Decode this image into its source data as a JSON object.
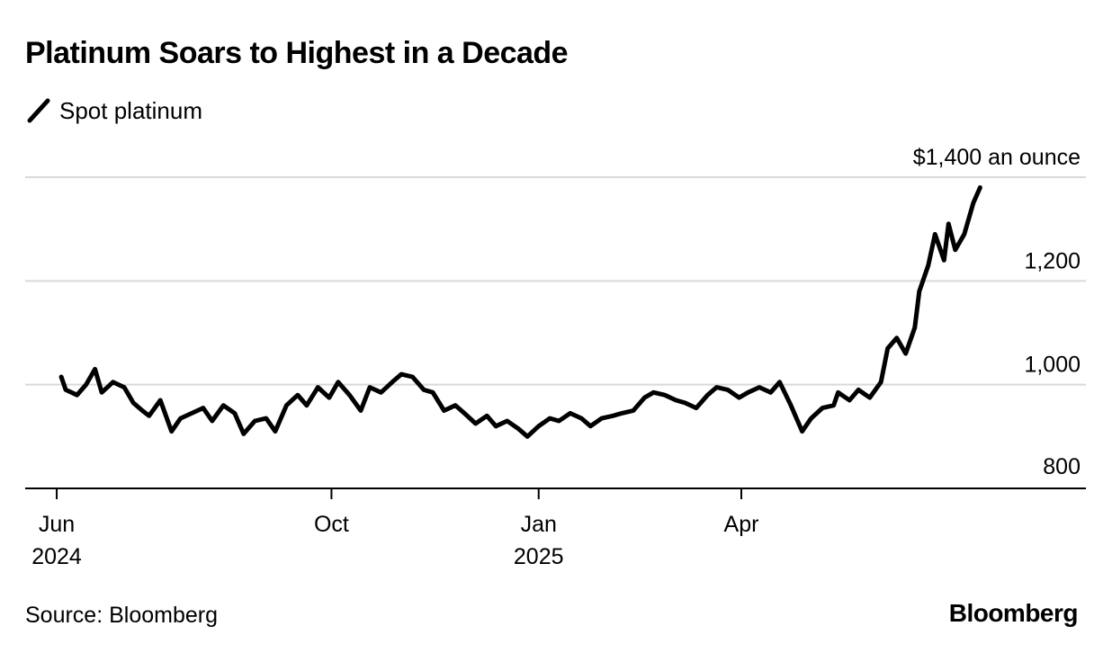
{
  "header": {
    "title": "Platinum Soars to Highest in a Decade",
    "legend_label": "Spot platinum"
  },
  "footer": {
    "source": "Source: Bloomberg",
    "brand": "Bloomberg"
  },
  "colors": {
    "line": "#000000",
    "grid": "#d9d9d9",
    "axis": "#000000"
  },
  "chart_data": {
    "type": "line",
    "title": "Platinum Soars to Highest in a Decade",
    "series": [
      {
        "name": "Spot platinum",
        "unit": "$ an ounce",
        "x": [
          "2024-06-03",
          "2024-06-05",
          "2024-06-10",
          "2024-06-14",
          "2024-06-18",
          "2024-06-21",
          "2024-06-26",
          "2024-07-01",
          "2024-07-05",
          "2024-07-09",
          "2024-07-12",
          "2024-07-17",
          "2024-07-22",
          "2024-07-26",
          "2024-07-31",
          "2024-08-05",
          "2024-08-09",
          "2024-08-14",
          "2024-08-19",
          "2024-08-23",
          "2024-08-28",
          "2024-09-02",
          "2024-09-06",
          "2024-09-11",
          "2024-09-16",
          "2024-09-20",
          "2024-09-25",
          "2024-09-30",
          "2024-10-04",
          "2024-10-09",
          "2024-10-14",
          "2024-10-18",
          "2024-10-23",
          "2024-10-28",
          "2024-11-01",
          "2024-11-06",
          "2024-11-11",
          "2024-11-15",
          "2024-11-20",
          "2024-11-25",
          "2024-11-29",
          "2024-12-04",
          "2024-12-09",
          "2024-12-13",
          "2024-12-18",
          "2024-12-23",
          "2024-12-27",
          "2025-01-01",
          "2025-01-06",
          "2025-01-10",
          "2025-01-15",
          "2025-01-20",
          "2025-01-24",
          "2025-01-29",
          "2025-02-03",
          "2025-02-07",
          "2025-02-12",
          "2025-02-17",
          "2025-02-21",
          "2025-02-26",
          "2025-03-03",
          "2025-03-07",
          "2025-03-12",
          "2025-03-17",
          "2025-03-21",
          "2025-03-26",
          "2025-03-31",
          "2025-04-04",
          "2025-04-09",
          "2025-04-14",
          "2025-04-18",
          "2025-04-23",
          "2025-04-28",
          "2025-05-02",
          "2025-05-07",
          "2025-05-12",
          "2025-05-14",
          "2025-05-19",
          "2025-05-23",
          "2025-05-28",
          "2025-06-02",
          "2025-06-05",
          "2025-06-09",
          "2025-06-11",
          "2025-06-13",
          "2025-06-17",
          "2025-06-19",
          "2025-06-23",
          "2025-06-26",
          "2025-06-30",
          "2025-07-02",
          "2025-07-05",
          "2025-07-09",
          "2025-07-13",
          "2025-07-16"
        ],
        "y": [
          1015,
          990,
          980,
          1000,
          1030,
          985,
          1005,
          995,
          965,
          950,
          940,
          970,
          910,
          935,
          945,
          955,
          930,
          960,
          945,
          905,
          930,
          935,
          910,
          960,
          980,
          960,
          995,
          975,
          1005,
          980,
          950,
          995,
          985,
          1005,
          1020,
          1015,
          990,
          985,
          950,
          960,
          945,
          925,
          940,
          920,
          930,
          915,
          900,
          920,
          935,
          930,
          945,
          935,
          920,
          935,
          940,
          945,
          950,
          975,
          985,
          980,
          970,
          965,
          955,
          980,
          995,
          990,
          975,
          985,
          995,
          985,
          1005,
          960,
          910,
          935,
          955,
          960,
          985,
          970,
          990,
          975,
          1005,
          1070,
          1090,
          1075,
          1060,
          1110,
          1180,
          1230,
          1290,
          1240,
          1310,
          1260,
          1290,
          1350,
          1380
        ]
      }
    ],
    "x_ticks": [
      {
        "date": "2024-06-01",
        "label": "Jun",
        "sublabel": "2024"
      },
      {
        "date": "2024-10-01",
        "label": "Oct",
        "sublabel": ""
      },
      {
        "date": "2025-01-01",
        "label": "Jan",
        "sublabel": "2025"
      },
      {
        "date": "2025-04-01",
        "label": "Apr",
        "sublabel": ""
      }
    ],
    "xlim": [
      "2024-05-18",
      "2025-09-01"
    ],
    "y_ticks": [
      {
        "value": 1400,
        "label": "$1,400 an ounce"
      },
      {
        "value": 1200,
        "label": "1,200"
      },
      {
        "value": 1000,
        "label": "1,000"
      },
      {
        "value": 800,
        "label": "800"
      }
    ],
    "ylim": [
      800,
      1400
    ],
    "grid": true,
    "legend": "top-left"
  }
}
